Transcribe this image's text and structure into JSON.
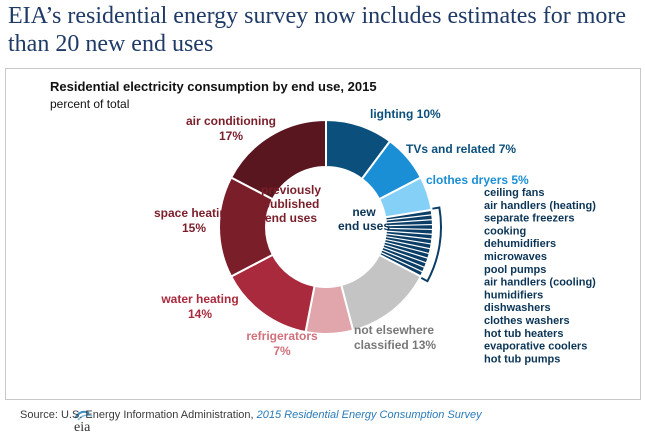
{
  "headline": "EIA’s residential energy survey now includes estimates for more than 20 new end uses",
  "source": {
    "prefix": "Source: U.S. Energy Information Administration,",
    "link": "2015 Residential Energy Consumption Survey"
  },
  "logo_text": "eia",
  "chart_data": {
    "type": "pie",
    "donut": true,
    "title": "Residential electricity consumption by end use, 2015",
    "subtitle": "percent of total",
    "center_left_label": "previously published end uses",
    "center_right_label": "new end uses",
    "slices": [
      {
        "name": "lighting",
        "value": 10,
        "label": "lighting 10%",
        "color": "#0b4f7c"
      },
      {
        "name": "TVs and related",
        "value": 7,
        "label": "TVs and related 7%",
        "color": "#1a8fd6"
      },
      {
        "name": "clothes dryers",
        "value": 5,
        "label": "clothes dryers 5%",
        "color": "#84d0f7"
      },
      {
        "name": "new end uses",
        "value": 10,
        "label": "",
        "color": "#0b3e66"
      },
      {
        "name": "not elsewhere classified",
        "value": 13,
        "label": "not elsewhere classified 13%",
        "color": "#c4c4c4"
      },
      {
        "name": "refrigerators",
        "value": 7,
        "label": "refrigerators 7%",
        "color": "#e0a6ab"
      },
      {
        "name": "water heating",
        "value": 14,
        "label": "water heating 14%",
        "color": "#a82a3c"
      },
      {
        "name": "space heating",
        "value": 15,
        "label": "space heating 15%",
        "color": "#7a1e2a"
      },
      {
        "name": "air conditioning",
        "value": 17,
        "label": "air conditioning 17%",
        "color": "#5a161f"
      }
    ],
    "new_end_uses": [
      "ceiling fans",
      "air handlers (heating)",
      "separate freezers",
      "cooking",
      "dehumidifiers",
      "microwaves",
      "pool pumps",
      "air handlers (cooling)",
      "humidifiers",
      "dishwashers",
      "clothes washers",
      "hot tub heaters",
      "evaporative coolers",
      "hot tub pumps"
    ],
    "label_colors": {
      "blue": "#0b4f7c",
      "dark_red": "#7a1e2a",
      "red": "#a82a3c",
      "pink": "#d0707a",
      "gray": "#777777",
      "list": "#0b3556"
    }
  }
}
